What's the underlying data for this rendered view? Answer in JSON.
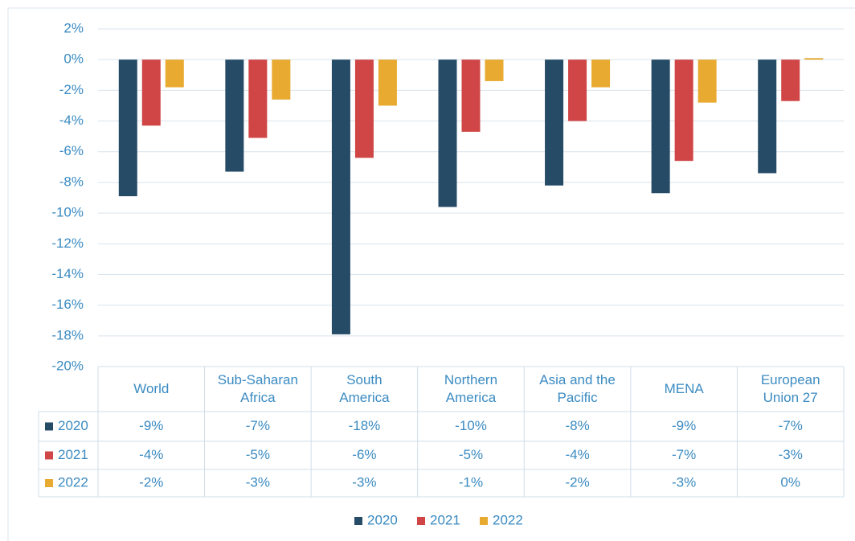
{
  "chart_data": {
    "type": "bar",
    "categories": [
      "World",
      "Sub-Saharan\nAfrica",
      "South\nAmerica",
      "Northern\nAmerica",
      "Asia and the\nPacific",
      "MENA",
      "European\nUnion 27"
    ],
    "series": [
      {
        "name": "2020",
        "color": "#264b67",
        "values": [
          -8.9,
          -7.3,
          -17.9,
          -9.6,
          -8.2,
          -8.7,
          -7.4
        ],
        "value_labels": [
          "-9%",
          "-7%",
          "-18%",
          "-10%",
          "-8%",
          "-9%",
          "-7%"
        ]
      },
      {
        "name": "2021",
        "color": "#d04545",
        "values": [
          -4.3,
          -5.1,
          -6.4,
          -4.7,
          -4.0,
          -6.6,
          -2.7
        ],
        "value_labels": [
          "-4%",
          "-5%",
          "-6%",
          "-5%",
          "-4%",
          "-7%",
          "-3%"
        ]
      },
      {
        "name": "2022",
        "color": "#e8aa30",
        "values": [
          -1.8,
          -2.6,
          -3.0,
          -1.4,
          -1.8,
          -2.8,
          0.1
        ],
        "value_labels": [
          "-2%",
          "-3%",
          "-3%",
          "-1%",
          "-2%",
          "-3%",
          "0%"
        ]
      }
    ],
    "ylim": [
      -20,
      2
    ],
    "yticks": [
      {
        "value": -20,
        "label": "-20%"
      },
      {
        "value": -18,
        "label": "-18%"
      },
      {
        "value": -16,
        "label": "-16%"
      },
      {
        "value": -14,
        "label": "-14%"
      },
      {
        "value": -12,
        "label": "-12%"
      },
      {
        "value": -10,
        "label": "-10%"
      },
      {
        "value": -8,
        "label": "-8%"
      },
      {
        "value": -6,
        "label": "-6%"
      },
      {
        "value": -4,
        "label": "-4%"
      },
      {
        "value": -2,
        "label": "-2%"
      },
      {
        "value": 0,
        "label": "0%"
      },
      {
        "value": 2,
        "label": "2%"
      }
    ],
    "grid": true
  }
}
